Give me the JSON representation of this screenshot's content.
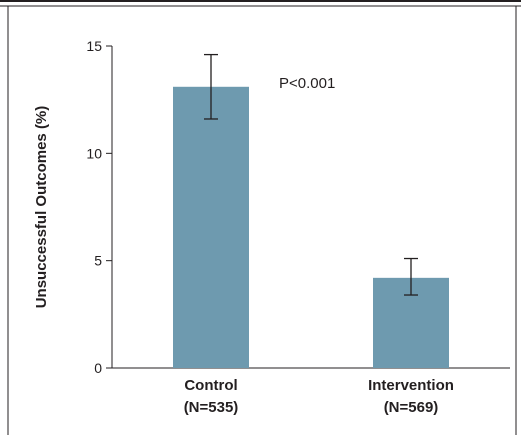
{
  "chart_data": {
    "type": "bar",
    "categories": [
      "Control",
      "Intervention"
    ],
    "category_sublabels": [
      "(N=535)",
      "(N=569)"
    ],
    "values": [
      13.1,
      4.2
    ],
    "error_bars": [
      [
        11.6,
        14.6
      ],
      [
        3.4,
        5.1
      ]
    ],
    "title": "",
    "xlabel": "",
    "ylabel": "Unsuccessful Outcomes (%)",
    "ylim": [
      0,
      15
    ],
    "yticks": [
      0,
      5,
      10,
      15
    ],
    "ytick_labels": [
      "0",
      "5",
      "10",
      "15"
    ],
    "grid": false,
    "annotation": "P<0.001",
    "colors": {
      "bar": "#6e9aaf",
      "axis": "#231f20",
      "frame": "#231f20"
    }
  }
}
